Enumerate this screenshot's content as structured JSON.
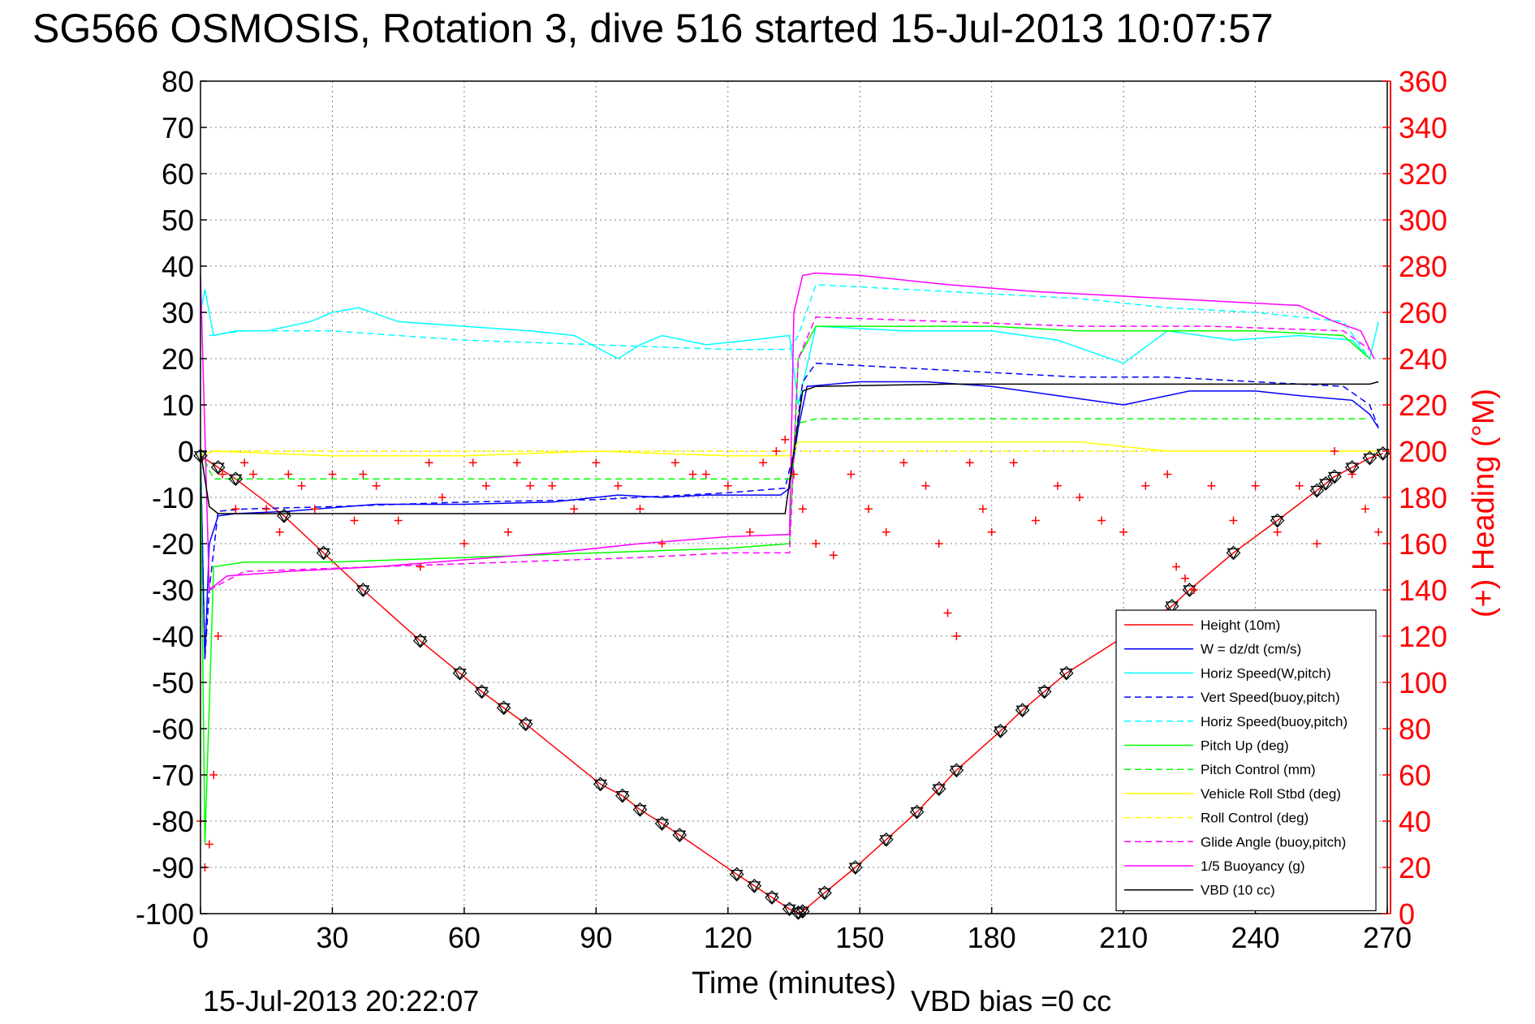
{
  "figure": {
    "title": "SG566 OSMOSIS, Rotation 3, dive 516 started 15-Jul-2013 10:07:57",
    "footer_left": "15-Jul-2013 20:22:07",
    "footer_right": "VBD bias =0 cc"
  },
  "chart_data": {
    "type": "line",
    "title": "SG566 OSMOSIS, Rotation 3, dive 516 started 15-Jul-2013 10:07:57",
    "xlabel": "Time (minutes)",
    "ylabel": "",
    "ylabel_right": "(+) Heading (°M)",
    "xlim": [
      0,
      270
    ],
    "ylim": [
      -100,
      80
    ],
    "ylim_right": [
      0,
      360
    ],
    "x_ticks": [
      0,
      30,
      60,
      90,
      120,
      150,
      180,
      210,
      240,
      270
    ],
    "y_ticks": [
      -100,
      -90,
      -80,
      -70,
      -60,
      -50,
      -40,
      -30,
      -20,
      -10,
      0,
      10,
      20,
      30,
      40,
      50,
      60,
      70,
      80
    ],
    "y_ticks_right": [
      0,
      20,
      40,
      60,
      80,
      100,
      120,
      140,
      160,
      180,
      200,
      220,
      240,
      260,
      280,
      300,
      320,
      340,
      360
    ],
    "grid": true,
    "legend_position": "bottom-right",
    "colors": {
      "right_axis": "#ff0000",
      "grid": "#808080",
      "axes": "#000000"
    },
    "series": [
      {
        "name": "Height (10m)",
        "color": "#ff0000",
        "style": "solid",
        "marker": "diamond+triangle",
        "x": [
          0,
          4,
          8,
          19,
          28,
          37,
          50,
          59,
          64,
          69,
          74,
          91,
          96,
          100,
          105,
          109,
          122,
          126,
          130,
          134,
          136,
          137,
          142,
          149,
          156,
          163,
          168,
          172,
          182,
          187,
          192,
          197,
          221,
          225,
          235,
          245,
          254,
          256,
          258,
          262,
          266,
          269
        ],
        "y": [
          -1,
          -3.5,
          -6,
          -14,
          -22,
          -30,
          -41,
          -48,
          -52,
          -55.5,
          -59,
          -72,
          -74.5,
          -77.5,
          -80.5,
          -83,
          -91.5,
          -94,
          -96.5,
          -99,
          -99.8,
          -99.5,
          -95.5,
          -90,
          -84,
          -78,
          -73,
          -69,
          -60.5,
          -56,
          -52,
          -48,
          -33.5,
          -30,
          -22,
          -15,
          -8.5,
          -7,
          -5.5,
          -3.5,
          -1.5,
          -0.5
        ]
      },
      {
        "name": "W = dz/dt (cm/s)",
        "color": "#0000ff",
        "style": "solid",
        "x": [
          0,
          1,
          2,
          4,
          8,
          20,
          40,
          60,
          80,
          95,
          105,
          115,
          125,
          132,
          134,
          136,
          138,
          150,
          165,
          180,
          195,
          210,
          225,
          240,
          250,
          262,
          266,
          268
        ],
        "y": [
          0,
          -45,
          -20,
          -14,
          -13.5,
          -13,
          -11.5,
          -11.5,
          -11,
          -9.5,
          -10,
          -9.5,
          -9.5,
          -9.5,
          -8,
          5,
          14,
          15,
          15,
          14,
          12,
          10,
          13,
          13,
          12,
          11,
          8,
          5
        ]
      },
      {
        "name": "Horiz Speed(W,pitch)",
        "color": "#00ffff",
        "style": "solid",
        "x": [
          0,
          1,
          3,
          8,
          15,
          25,
          30,
          36,
          45,
          60,
          75,
          85,
          95,
          100,
          105,
          115,
          125,
          134,
          136,
          140,
          160,
          180,
          195,
          210,
          220,
          235,
          250,
          262,
          266,
          268
        ],
        "y": [
          30,
          35,
          25,
          26,
          26,
          28,
          30,
          31,
          28,
          27,
          26,
          25,
          20,
          23,
          25,
          23,
          24,
          25,
          10,
          27,
          26,
          26,
          24,
          19,
          26,
          24,
          25,
          24,
          20,
          28
        ]
      },
      {
        "name": "Vert Speed(buoy,pitch)",
        "color": "#0000ff",
        "style": "dashed",
        "x": [
          0,
          1,
          2,
          4,
          10,
          30,
          60,
          90,
          120,
          133,
          135,
          137,
          140,
          160,
          180,
          200,
          220,
          240,
          260,
          266,
          268
        ],
        "y": [
          0,
          -45,
          -30,
          -13,
          -12.5,
          -12,
          -11,
          -10.5,
          -9,
          -8,
          0,
          15,
          19,
          18,
          17,
          16,
          16,
          15,
          14,
          10,
          5
        ]
      },
      {
        "name": "Horiz Speed(buoy,pitch)",
        "color": "#00ffff",
        "style": "dashed",
        "x": [
          2,
          10,
          30,
          60,
          90,
          120,
          134,
          136,
          140,
          160,
          180,
          200,
          220,
          240,
          260,
          266
        ],
        "y": [
          25,
          26,
          26,
          24,
          23,
          22,
          22,
          25,
          36,
          35,
          34,
          33,
          31,
          30,
          28,
          20
        ]
      },
      {
        "name": "Pitch Up (deg)",
        "color": "#00ff00",
        "style": "solid",
        "x": [
          0,
          1,
          3,
          10,
          30,
          60,
          90,
          120,
          134,
          136,
          140,
          160,
          180,
          200,
          220,
          240,
          260,
          266
        ],
        "y": [
          0,
          -85,
          -25,
          -24,
          -24,
          -23,
          -22,
          -21,
          -20,
          20,
          27,
          27,
          27,
          26,
          26,
          26,
          25,
          20
        ]
      },
      {
        "name": "Pitch Control (mm)",
        "color": "#00ff00",
        "style": "dashed",
        "x": [
          0,
          3,
          10,
          50,
          90,
          134,
          136,
          140,
          200,
          266
        ],
        "y": [
          0,
          -6,
          -6,
          -6,
          -6,
          -6,
          6,
          7,
          7,
          7
        ]
      },
      {
        "name": "Vehicle Roll Stbd (deg)",
        "color": "#ffff00",
        "style": "solid",
        "x": [
          0,
          3,
          30,
          60,
          90,
          120,
          134,
          136,
          170,
          200,
          220,
          240,
          268
        ],
        "y": [
          -1,
          0,
          -1,
          -1,
          0,
          -1,
          -1,
          2,
          2,
          2,
          0,
          0,
          0
        ]
      },
      {
        "name": "Roll Control (deg)",
        "color": "#ffff00",
        "style": "dashed",
        "x": [
          0,
          3,
          30,
          60,
          90,
          120,
          134,
          136,
          170,
          200,
          220,
          240,
          268
        ],
        "y": [
          0,
          0,
          0,
          0,
          0,
          0,
          0,
          0,
          0,
          0,
          0,
          0,
          0
        ]
      },
      {
        "name": "Glide Angle (buoy,pitch)",
        "color": "#ff00ff",
        "style": "dashed",
        "x": [
          2,
          10,
          40,
          70,
          100,
          120,
          134,
          136,
          140,
          170,
          200,
          230,
          260,
          266
        ],
        "y": [
          -30,
          -26,
          -25,
          -24,
          -23,
          -22,
          -22,
          20,
          29,
          28,
          27,
          27,
          26,
          22
        ]
      },
      {
        "name": "1/5 Buoyancy (g)",
        "color": "#ff00ff",
        "style": "solid",
        "x": [
          0,
          2,
          6,
          20,
          40,
          60,
          80,
          100,
          120,
          134,
          135,
          137,
          140,
          150,
          170,
          190,
          210,
          230,
          250,
          258,
          264,
          267
        ],
        "y": [
          38,
          -30,
          -27,
          -26,
          -25,
          -23.5,
          -22,
          -20,
          -18.5,
          -18,
          30,
          38,
          38.5,
          38,
          36,
          34.5,
          33.5,
          32.5,
          31.5,
          28,
          26,
          20
        ]
      },
      {
        "name": "VBD (10 cc)",
        "color": "#000000",
        "style": "solid",
        "x": [
          0,
          2,
          4,
          30,
          60,
          90,
          120,
          133,
          135,
          137,
          140,
          170,
          200,
          230,
          260,
          266,
          268
        ],
        "y": [
          0,
          -12,
          -13.5,
          -13.5,
          -13.5,
          -13.5,
          -13.5,
          -13.5,
          0,
          13,
          14,
          14.5,
          14.5,
          14.5,
          14.5,
          14.5,
          15
        ]
      },
      {
        "name": "Heading",
        "axis": "right",
        "color": "#ff0000",
        "style": "marker",
        "marker": "+",
        "x": [
          0,
          1,
          2,
          3,
          4,
          5,
          8,
          10,
          12,
          15,
          18,
          20,
          23,
          26,
          30,
          35,
          37,
          40,
          45,
          50,
          52,
          55,
          60,
          62,
          65,
          70,
          72,
          75,
          80,
          85,
          90,
          95,
          100,
          105,
          108,
          112,
          115,
          120,
          125,
          128,
          131,
          133,
          135,
          137,
          140,
          144,
          148,
          152,
          156,
          160,
          165,
          168,
          170,
          172,
          175,
          178,
          180,
          185,
          190,
          195,
          200,
          205,
          210,
          215,
          220,
          222,
          224,
          226,
          230,
          235,
          240,
          245,
          250,
          254,
          258,
          262,
          265,
          268
        ],
        "y": [
          40,
          20,
          30,
          60,
          120,
          190,
          175,
          195,
          190,
          175,
          165,
          190,
          185,
          175,
          190,
          170,
          190,
          185,
          170,
          150,
          195,
          180,
          160,
          195,
          185,
          165,
          195,
          185,
          185,
          175,
          195,
          185,
          175,
          160,
          195,
          190,
          190,
          185,
          165,
          195,
          200,
          205,
          190,
          175,
          160,
          155,
          190,
          175,
          165,
          195,
          185,
          160,
          130,
          120,
          195,
          175,
          165,
          195,
          170,
          185,
          180,
          170,
          165,
          185,
          190,
          150,
          145,
          140,
          185,
          170,
          185,
          165,
          185,
          160,
          200,
          190,
          175,
          165
        ]
      }
    ]
  }
}
